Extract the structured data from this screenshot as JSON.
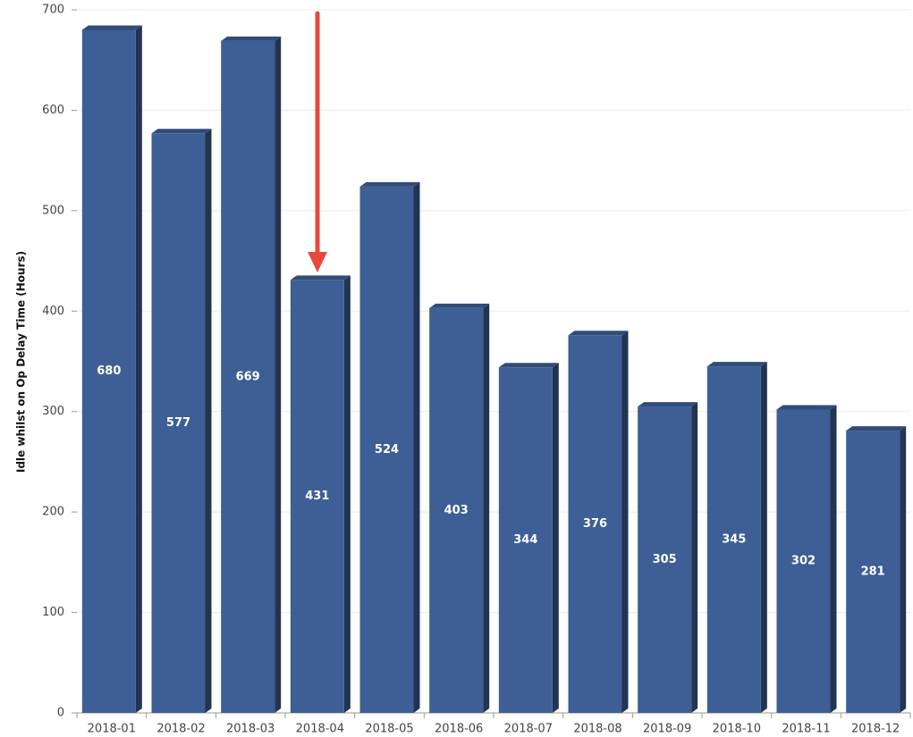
{
  "chart_data": {
    "type": "bar",
    "y_axis_label": "Idle whilst on Op Delay Time (Hours)",
    "categories": [
      "2018-01",
      "2018-02",
      "2018-03",
      "2018-04",
      "2018-05",
      "2018-06",
      "2018-07",
      "2018-08",
      "2018-09",
      "2018-10",
      "2018-11",
      "2018-12"
    ],
    "values": [
      680,
      577,
      669,
      431,
      524,
      403,
      344,
      376,
      305,
      345,
      302,
      281
    ],
    "color": "#3d5f96",
    "ylim": [
      0,
      700
    ],
    "yticks": [
      0,
      100,
      200,
      300,
      400,
      500,
      600,
      700
    ],
    "grid": true
  }
}
